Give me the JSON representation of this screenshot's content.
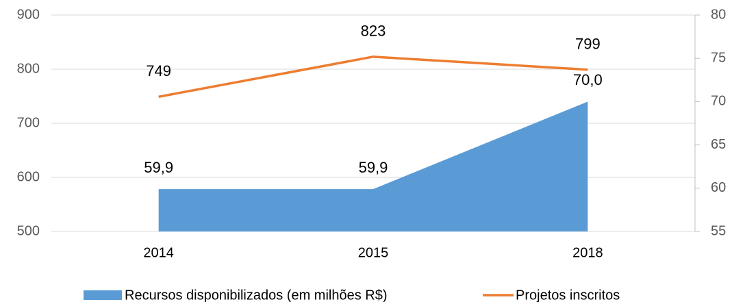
{
  "chart_data": {
    "type": "combo",
    "categories": [
      "2014",
      "2015",
      "2018"
    ],
    "series": [
      {
        "name": "Recursos disponibilizados (em milhões R$)",
        "type": "area",
        "axis": "y2",
        "color": "#5b9bd5",
        "values": [
          59.9,
          59.9,
          70.0
        ],
        "value_labels": [
          "59,9",
          "59,9",
          "70,0"
        ]
      },
      {
        "name": "Projetos inscritos",
        "type": "line",
        "color": "#ed7d31",
        "values": [
          749,
          823,
          799
        ]
      }
    ],
    "ylim": [
      500,
      900
    ],
    "yticks": [
      500,
      600,
      700,
      800,
      900
    ],
    "y2lim": [
      55,
      80
    ],
    "y2ticks": [
      55,
      60,
      65,
      70,
      75,
      80
    ],
    "grid": true,
    "legend": "bottom"
  }
}
